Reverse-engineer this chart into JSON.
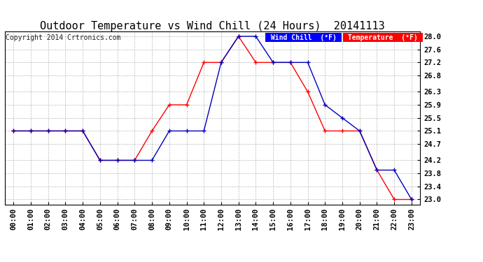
{
  "title": "Outdoor Temperature vs Wind Chill (24 Hours)  20141113",
  "copyright": "Copyright 2014 Crtronics.com",
  "x_labels": [
    "00:00",
    "01:00",
    "02:00",
    "03:00",
    "04:00",
    "05:00",
    "06:00",
    "07:00",
    "08:00",
    "09:00",
    "10:00",
    "11:00",
    "12:00",
    "13:00",
    "14:00",
    "15:00",
    "16:00",
    "17:00",
    "18:00",
    "19:00",
    "20:00",
    "21:00",
    "22:00",
    "23:00"
  ],
  "temperature": [
    25.1,
    25.1,
    25.1,
    25.1,
    25.1,
    24.2,
    24.2,
    24.2,
    25.1,
    25.9,
    25.9,
    27.2,
    27.2,
    28.0,
    27.2,
    27.2,
    27.2,
    26.3,
    25.1,
    25.1,
    25.1,
    23.9,
    23.0,
    23.0
  ],
  "wind_chill": [
    25.1,
    25.1,
    25.1,
    25.1,
    25.1,
    24.2,
    24.2,
    24.2,
    24.2,
    25.1,
    25.1,
    25.1,
    27.2,
    28.0,
    28.0,
    27.2,
    27.2,
    27.2,
    25.9,
    25.5,
    25.1,
    23.9,
    23.9,
    23.0
  ],
  "temp_color": "#ff0000",
  "wind_chill_color": "#0000bb",
  "ylim_min": 22.85,
  "ylim_max": 28.15,
  "yticks": [
    23.0,
    23.4,
    23.8,
    24.2,
    24.7,
    25.1,
    25.5,
    25.9,
    26.3,
    26.8,
    27.2,
    27.6,
    28.0
  ],
  "bg_color": "#ffffff",
  "grid_color": "#aaaaaa",
  "title_fontsize": 11,
  "tick_fontsize": 7.5,
  "copyright_fontsize": 7,
  "legend_wind_chill_bg": "#0000ff",
  "legend_temp_bg": "#ff0000",
  "legend_text_color": "#ffffff",
  "legend_fontsize": 7
}
